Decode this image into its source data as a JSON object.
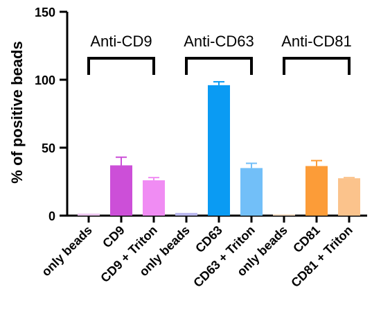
{
  "chart_data": {
    "type": "bar",
    "ylabel": "% of positive beads",
    "xlabel": "",
    "ylim": [
      0,
      150
    ],
    "yticks": [
      0,
      50,
      100,
      150
    ],
    "categories": [
      "only beads",
      "CD9",
      "CD9 + Triton",
      "only beads",
      "CD63",
      "CD63 + Triton",
      "only beads",
      "CD81",
      "CD81 + Triton"
    ],
    "values": [
      1.5,
      37,
      26,
      2,
      96,
      35,
      1,
      36.5,
      27.5
    ],
    "error_upper": [
      0,
      43,
      28,
      0,
      98.5,
      38.5,
      0,
      40.5,
      28
    ],
    "colors": [
      "#ebc5ee",
      "#cc4fd8",
      "#f08cf3",
      "#b9b7ee",
      "#0a9bf3",
      "#72bff8",
      "#f7dcc3",
      "#fc9c38",
      "#fbc38c"
    ],
    "groups": [
      {
        "label": "Anti-CD9",
        "start": 0,
        "end": 2
      },
      {
        "label": "Anti-CD63",
        "start": 3,
        "end": 5
      },
      {
        "label": "Anti-CD81",
        "start": 6,
        "end": 8
      }
    ]
  }
}
